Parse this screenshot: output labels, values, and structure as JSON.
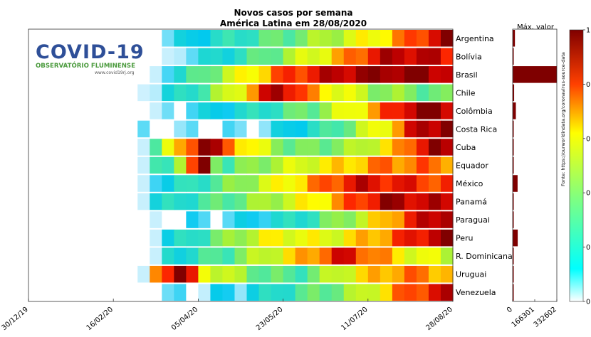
{
  "chart_data": [
    {
      "type": "heatmap",
      "title": "Novos casos por semana",
      "subtitle": "América Latina em 28/08/2020",
      "xlabel": "",
      "ylabel": "",
      "x_ticks": [
        "30/12/19",
        "16/02/20",
        "05/04/20",
        "23/05/20",
        "11/07/20",
        "28/08/20"
      ],
      "rows": [
        "Argentina",
        "Bolívia",
        "Brasil",
        "Chile",
        "Colômbia",
        "Costa Rica",
        "Cuba",
        "Equador",
        "México",
        "Panamá",
        "Paraguai",
        "Peru",
        "R. Dominicana",
        "Uruguai",
        "Venezuela"
      ],
      "first_data_week": [
        10,
        11,
        10,
        9,
        10,
        8,
        9,
        9,
        9,
        9,
        10,
        10,
        10,
        9,
        9
      ],
      "row_profiles": [
        [
          [
            0,
            0.05
          ],
          [
            0.25,
            0.25
          ],
          [
            0.5,
            0.4
          ],
          [
            0.75,
            0.6
          ],
          [
            0.9,
            0.8
          ],
          [
            1,
            1
          ]
        ],
        [
          [
            0,
            0.05
          ],
          [
            0.3,
            0.3
          ],
          [
            0.6,
            0.65
          ],
          [
            0.75,
            0.9
          ],
          [
            0.9,
            0.95
          ],
          [
            1,
            0.85
          ]
        ],
        [
          [
            0,
            0.08
          ],
          [
            0.25,
            0.5
          ],
          [
            0.45,
            0.8
          ],
          [
            0.65,
            0.95
          ],
          [
            0.85,
            1
          ],
          [
            1,
            0.95
          ]
        ],
        [
          [
            0,
            0.05
          ],
          [
            0.15,
            0.25
          ],
          [
            0.3,
            0.55
          ],
          [
            0.45,
            1
          ],
          [
            0.55,
            0.7
          ],
          [
            0.75,
            0.45
          ],
          [
            1,
            0.35
          ]
        ],
        [
          [
            0,
            0.03
          ],
          [
            0.3,
            0.2
          ],
          [
            0.55,
            0.4
          ],
          [
            0.75,
            0.7
          ],
          [
            0.9,
            1
          ],
          [
            1,
            0.95
          ]
        ],
        [
          [
            0,
            0.02
          ],
          [
            0.4,
            0.05
          ],
          [
            0.6,
            0.25
          ],
          [
            0.8,
            0.6
          ],
          [
            0.92,
            0.95
          ],
          [
            1,
            1
          ]
        ],
        [
          [
            0,
            0.2
          ],
          [
            0.1,
            0.6
          ],
          [
            0.2,
            1
          ],
          [
            0.35,
            0.6
          ],
          [
            0.5,
            0.35
          ],
          [
            0.7,
            0.45
          ],
          [
            0.85,
            0.7
          ],
          [
            0.95,
            1
          ],
          [
            1,
            0.9
          ]
        ],
        [
          [
            0,
            0.2
          ],
          [
            0.08,
            0.3
          ],
          [
            0.2,
            1
          ],
          [
            0.25,
            0.3
          ],
          [
            0.4,
            0.45
          ],
          [
            0.6,
            0.6
          ],
          [
            0.8,
            0.75
          ],
          [
            1,
            0.75
          ]
        ],
        [
          [
            0,
            0.1
          ],
          [
            0.3,
            0.4
          ],
          [
            0.55,
            0.7
          ],
          [
            0.7,
            0.9
          ],
          [
            0.85,
            0.85
          ],
          [
            1,
            0.8
          ]
        ],
        [
          [
            0,
            0.15
          ],
          [
            0.2,
            0.3
          ],
          [
            0.4,
            0.45
          ],
          [
            0.6,
            0.65
          ],
          [
            0.8,
            0.95
          ],
          [
            1,
            0.9
          ]
        ],
        [
          [
            0,
            0.03
          ],
          [
            0.3,
            0.1
          ],
          [
            0.5,
            0.25
          ],
          [
            0.7,
            0.5
          ],
          [
            0.85,
            0.8
          ],
          [
            1,
            1
          ]
        ],
        [
          [
            0,
            0.1
          ],
          [
            0.2,
            0.35
          ],
          [
            0.4,
            0.6
          ],
          [
            0.6,
            0.55
          ],
          [
            0.8,
            0.75
          ],
          [
            1,
            1
          ]
        ],
        [
          [
            0,
            0.15
          ],
          [
            0.25,
            0.35
          ],
          [
            0.45,
            0.6
          ],
          [
            0.65,
            0.9
          ],
          [
            0.85,
            0.6
          ],
          [
            1,
            0.5
          ]
        ],
        [
          [
            0,
            0.4
          ],
          [
            0.05,
            0.8
          ],
          [
            0.12,
            1
          ],
          [
            0.2,
            0.6
          ],
          [
            0.35,
            0.4
          ],
          [
            0.5,
            0.3
          ],
          [
            0.7,
            0.6
          ],
          [
            0.85,
            0.75
          ],
          [
            1,
            0.7
          ]
        ],
        [
          [
            0,
            0.02
          ],
          [
            0.3,
            0.1
          ],
          [
            0.5,
            0.3
          ],
          [
            0.7,
            0.45
          ],
          [
            0.88,
            0.8
          ],
          [
            1,
            0.9
          ]
        ]
      ],
      "max_label": "Máx. valor",
      "max_axis_ticks": [
        "0",
        "166301",
        "332602"
      ],
      "max_values": [
        17000,
        6000,
        332602,
        11000,
        24000,
        3500,
        300,
        4500,
        37000,
        2000,
        3000,
        38000,
        3500,
        300,
        3800
      ],
      "max_axis_range": [
        0,
        332602
      ],
      "colorbar_ticks": [
        "1",
        "0.8",
        "0.6",
        "0.4",
        "0.2",
        "0"
      ],
      "colorscale": "jet (white at 0, dark red at 1)",
      "source_note": "Fonte: https://ourworldindata.org/coronavirus-source-data"
    }
  ],
  "logo": {
    "title": "COVID-19",
    "subtitle": "OBSERVATÓRIO FLUMINENSE",
    "url": "www.covid19rj.org"
  },
  "colors": {
    "logo_blue": "#2e4f98",
    "logo_green": "#4a9a3c",
    "bar_red": "#7f0000"
  }
}
